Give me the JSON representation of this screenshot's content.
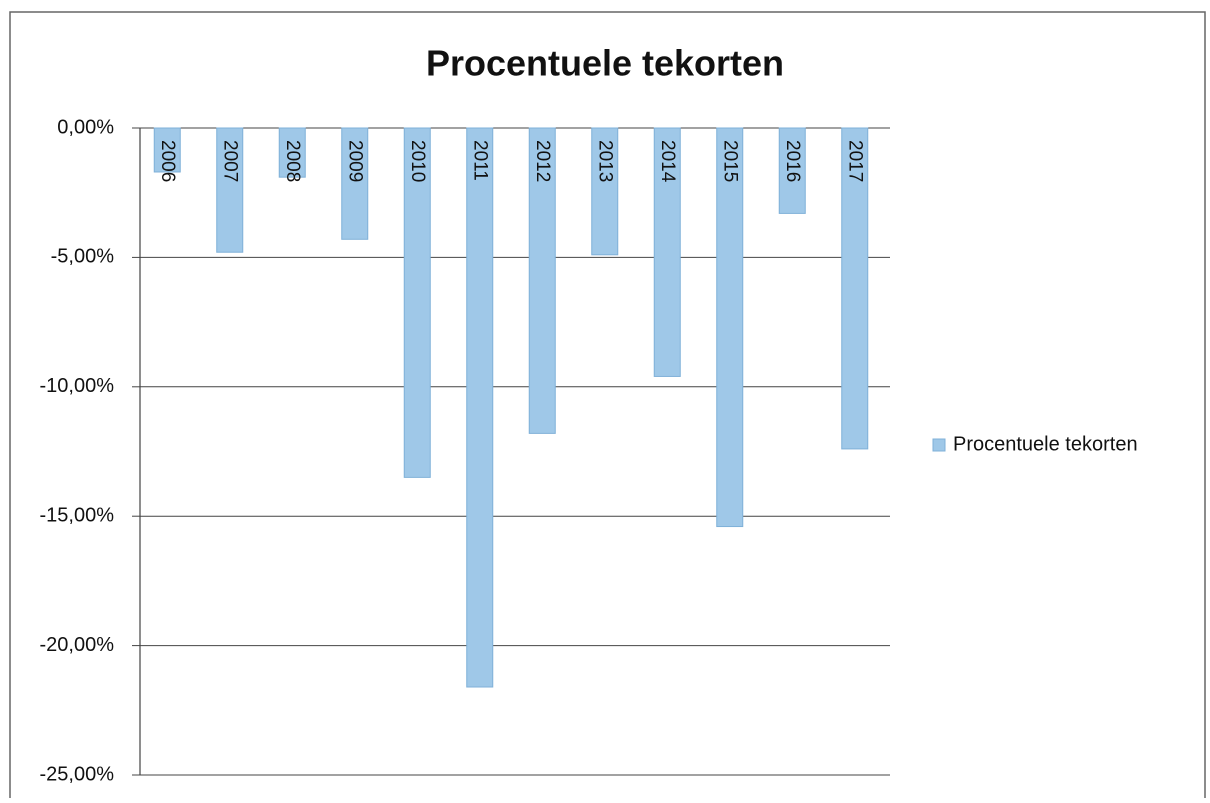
{
  "chart_data": {
    "type": "bar",
    "title": "Procentuele tekorten",
    "categories": [
      "2006",
      "2007",
      "2008",
      "2009",
      "2010",
      "2011",
      "2012",
      "2013",
      "2014",
      "2015",
      "2016",
      "2017"
    ],
    "series": [
      {
        "name": "Procentuele tekorten",
        "color": "#9fc8e8",
        "values": [
          -1.7,
          -4.8,
          -1.9,
          -4.3,
          -13.5,
          -21.6,
          -11.8,
          -4.9,
          -9.6,
          -15.4,
          -3.3,
          -12.4
        ]
      }
    ],
    "ylim": [
      -25,
      0
    ],
    "yticks": [
      {
        "value": 0,
        "label": "0,00%"
      },
      {
        "value": -5,
        "label": "-5,00%"
      },
      {
        "value": -10,
        "label": "-10,00%"
      },
      {
        "value": -15,
        "label": "-15,00%"
      },
      {
        "value": -20,
        "label": "-20,00%"
      },
      {
        "value": -25,
        "label": "-25,00%"
      }
    ],
    "grid": true,
    "legend": "right"
  }
}
